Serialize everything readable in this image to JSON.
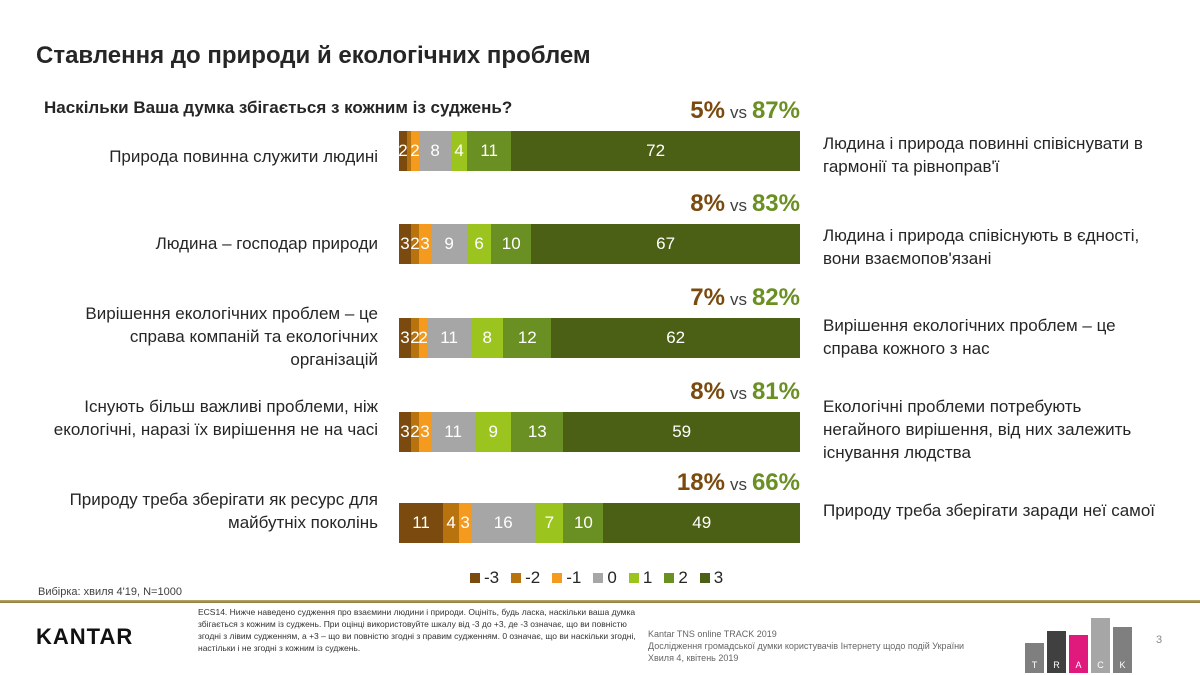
{
  "title": "Ставлення до природи й екологічних проблем",
  "question": "Наскільки Ваша думка збігається з кожним із суджень?",
  "colors": {
    "-3": "#7a4a0f",
    "-2": "#b8730f",
    "-1": "#f39a1f",
    "0": "#a6a6a6",
    "1": "#9cc41f",
    "2": "#6a8f22",
    "3": "#4b6014",
    "neg": "#7a4a0f",
    "pos": "#6a8f22"
  },
  "chart_data": {
    "type": "bar",
    "orientation": "horizontal",
    "stacked": true,
    "xlim": [
      0,
      100
    ],
    "categories": [
      "-3",
      "-2",
      "-1",
      "0",
      "1",
      "2",
      "3"
    ],
    "legend": {
      "items": [
        "-3",
        "-2",
        "-1",
        "0",
        "1",
        "2",
        "3"
      ],
      "position": "bottom"
    },
    "rows": [
      {
        "left": "Природа повинна служити людині",
        "right": "Людина і природа повинні співіснувати в гармонії та рівноправ'ї",
        "neg": "5%",
        "vs": "vs",
        "pos": "87%",
        "values": [
          2,
          1,
          2,
          8,
          4,
          11,
          72
        ]
      },
      {
        "left": "Людина – господар природи",
        "right": "Людина і природа співіснують в єдності, вони взаємопов'язані",
        "neg": "8%",
        "vs": "vs",
        "pos": "83%",
        "values": [
          3,
          2,
          3,
          9,
          6,
          10,
          67
        ]
      },
      {
        "left": "Вирішення екологічних проблем – це справа компаній та екологічних організацій",
        "right": "Вирішення екологічних проблем – це справа кожного з нас",
        "neg": "7%",
        "vs": "vs",
        "pos": "82%",
        "values": [
          3,
          2,
          2,
          11,
          8,
          12,
          62
        ]
      },
      {
        "left": "Існують більш важливі проблеми, ніж екологічні, наразі їх вирішення не на часі",
        "right": "Екологічні проблеми потребують негайного вирішення, від них залежить існування людства",
        "neg": "8%",
        "vs": "vs",
        "pos": "81%",
        "values": [
          3,
          2,
          3,
          11,
          9,
          13,
          59
        ]
      },
      {
        "left": "Природу треба зберігати як ресурс для майбутніх поколінь",
        "right": "Природу треба зберігати заради неї самої",
        "neg": "18%",
        "vs": "vs",
        "pos": "66%",
        "values": [
          11,
          4,
          3,
          16,
          7,
          10,
          49
        ]
      }
    ]
  },
  "sample": "Вибірка: хвиля 4'19, N=1000",
  "footer": {
    "logo": "KANTAR",
    "note": "ECS14. Нижче наведено судження про взаємини людини і природи. Оцініть, будь ласка, наскільки ваша думка збігається з кожним із суджень. При оцінці використовуйте шкалу від -3 до +3, де -3 означає, що ви повністю згодні з лівим судженням, а +3 – що ви повністю згодні з правим судженням. 0 означає, що ви наскільки згодні, настільки і не згодні з кожним із суджень.",
    "src1": "Kantar TNS online TRACK 2019",
    "src2": "Дослідження громадської думки користувачів Інтернету щодо подій України",
    "src3": "Хвиля 4, квітень 2019",
    "track": [
      "T",
      "R",
      "A",
      "C",
      "K"
    ],
    "page": "3"
  }
}
